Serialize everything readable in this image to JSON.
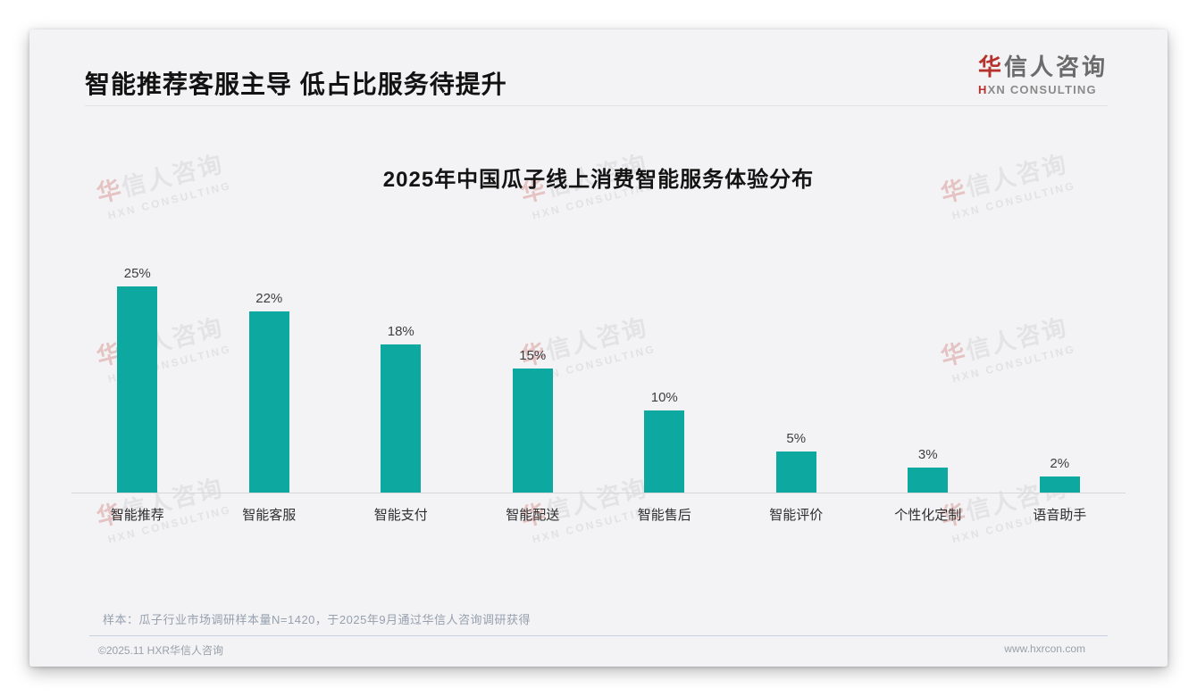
{
  "header": {
    "title": "智能推荐客服主导 低占比服务待提升",
    "logo": {
      "brand_prefix": "华",
      "brand_rest": "信人咨询",
      "subtitle_prefix": "H",
      "subtitle_rest": "XN CONSULTING"
    }
  },
  "watermark": {
    "line1_prefix": "华",
    "line1_rest": "信人咨询",
    "line2": "HXN CONSULTING"
  },
  "chart_data": {
    "type": "bar",
    "title": "2025年中国瓜子线上消费智能服务体验分布",
    "categories": [
      "智能推荐",
      "智能客服",
      "智能支付",
      "智能配送",
      "智能售后",
      "智能评价",
      "个性化定制",
      "语音助手"
    ],
    "values": [
      25,
      22,
      18,
      15,
      10,
      5,
      3,
      2
    ],
    "unit": "%",
    "bar_color": "#0da9a1",
    "ylim": [
      0,
      25
    ],
    "grid": false,
    "legend": null,
    "value_label_position": "above"
  },
  "footnote": "样本：瓜子行业市场调研样本量N=1420，于2025年9月通过华信人咨询调研获得",
  "footer": {
    "copyright": "©2025.11 HXR华信人咨询",
    "website": "www.hxrcon.com"
  }
}
